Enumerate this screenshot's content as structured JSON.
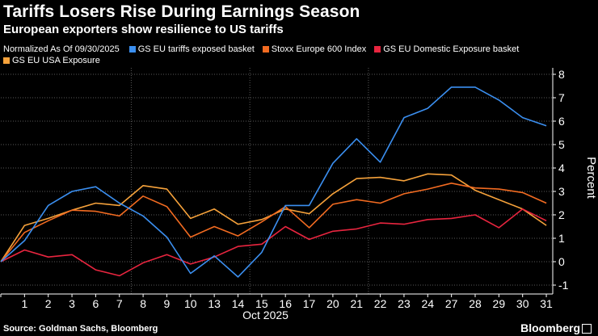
{
  "header": {
    "title": "Tariffs Losers Rise During Earnings Season",
    "subtitle": "European exporters show resilience to US tariffs"
  },
  "legend": {
    "note": "Normalized As Of 09/30/2025"
  },
  "footer": {
    "source": "Source: Goldman Sachs, Bloomberg",
    "brand": "Bloomberg"
  },
  "chart_data": {
    "type": "line",
    "x": [
      "",
      "1",
      "2",
      "3",
      "6",
      "7",
      "8",
      "9",
      "10",
      "13",
      "14",
      "15",
      "16",
      "17",
      "20",
      "21",
      "22",
      "23",
      "24",
      "27",
      "28",
      "29",
      "30",
      "31"
    ],
    "xlabel": "Oct 2025",
    "ylabel": "Percent",
    "ylim": [
      -1.5,
      8.4
    ],
    "yticks": [
      -1,
      0,
      1,
      2,
      3,
      4,
      5,
      6,
      7,
      8
    ],
    "grid": true,
    "series": [
      {
        "name": "GS EU tariffs exposed basket",
        "color": "#3b8ff0",
        "values": [
          0,
          0.9,
          2.4,
          3.0,
          3.2,
          2.5,
          1.95,
          1.05,
          -0.5,
          0.25,
          -0.65,
          0.4,
          2.4,
          2.4,
          4.2,
          5.25,
          4.25,
          6.15,
          6.55,
          7.45,
          7.45,
          6.9,
          6.15,
          5.8
        ]
      },
      {
        "name": "Stoxx Europe 600 Index",
        "color": "#f26b21",
        "values": [
          0,
          1.25,
          1.75,
          2.2,
          2.15,
          1.95,
          2.8,
          2.35,
          1.05,
          1.5,
          1.1,
          1.7,
          2.35,
          1.45,
          2.45,
          2.65,
          2.5,
          2.9,
          3.1,
          3.35,
          3.15,
          3.1,
          2.95,
          2.5
        ]
      },
      {
        "name": "GS EU Domestic Exposure basket",
        "color": "#e8253f",
        "values": [
          0,
          0.5,
          0.2,
          0.3,
          -0.35,
          -0.6,
          -0.05,
          0.3,
          -0.1,
          0.2,
          0.65,
          0.75,
          1.5,
          0.95,
          1.3,
          1.4,
          1.65,
          1.6,
          1.8,
          1.85,
          2.0,
          1.45,
          2.25,
          1.75
        ]
      },
      {
        "name": "GS EU USA Exposure",
        "color": "#f6a23b",
        "values": [
          0,
          1.55,
          1.85,
          2.2,
          2.5,
          2.4,
          3.25,
          3.1,
          1.85,
          2.25,
          1.6,
          1.8,
          2.25,
          2.05,
          2.9,
          3.55,
          3.6,
          3.45,
          3.75,
          3.7,
          3.05,
          2.65,
          2.25,
          1.55
        ]
      }
    ]
  }
}
